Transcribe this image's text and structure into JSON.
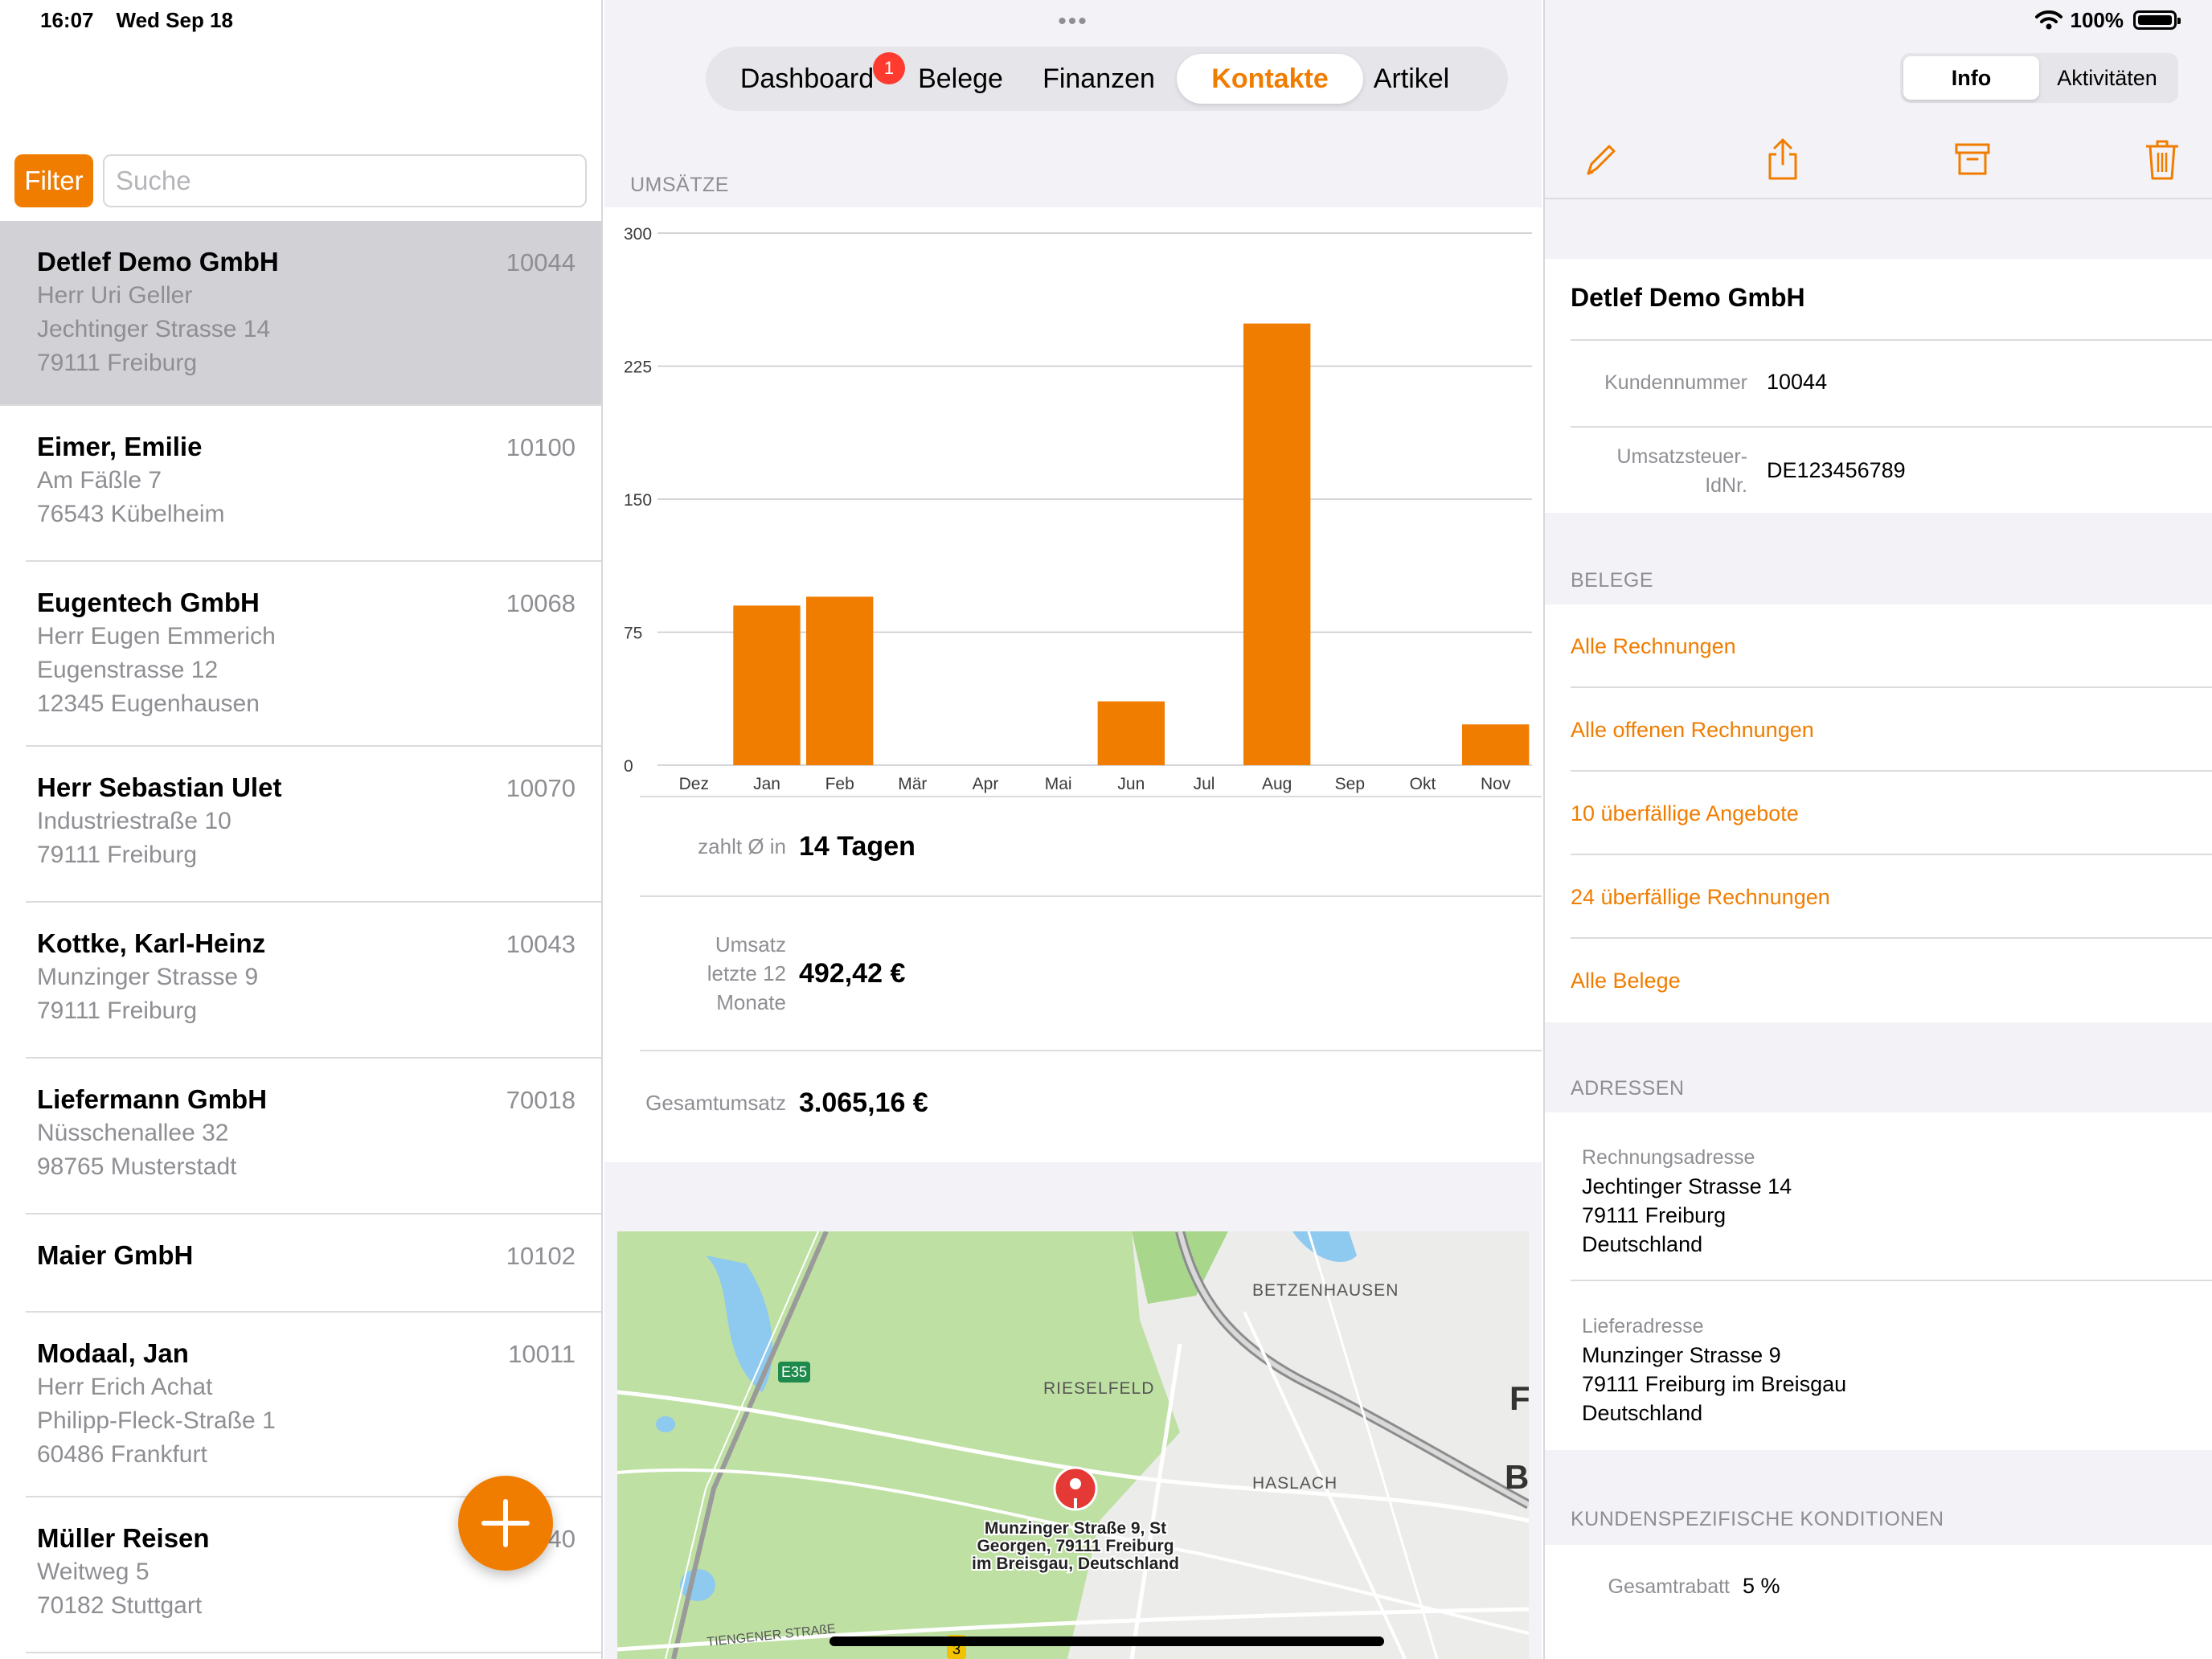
{
  "status": {
    "time": "16:07",
    "date": "Wed Sep 18",
    "battery": "100%"
  },
  "left": {
    "filter_label": "Filter",
    "search_placeholder": "Suche",
    "contacts": [
      {
        "name": "Detlef Demo GmbH",
        "number": "10044",
        "lines": [
          "Herr Uri Geller",
          "Jechtinger Strasse 14",
          "79111  Freiburg"
        ],
        "selected": true
      },
      {
        "name": "Eimer, Emilie",
        "number": "10100",
        "lines": [
          "Am Fäßle 7",
          "76543  Kübelheim"
        ]
      },
      {
        "name": "Eugentech GmbH",
        "number": "10068",
        "lines": [
          "Herr Eugen Emmerich",
          "Eugenstrasse 12",
          "12345  Eugenhausen"
        ]
      },
      {
        "name": "Herr Sebastian Ulet",
        "number": "10070",
        "lines": [
          "Industriestraße 10",
          "79111  Freiburg"
        ]
      },
      {
        "name": "Kottke, Karl-Heinz",
        "number": "10043",
        "lines": [
          "Munzinger Strasse 9",
          "79111  Freiburg"
        ]
      },
      {
        "name": "Liefermann GmbH",
        "number": "70018",
        "lines": [
          "Nüsschenallee 32",
          "98765  Musterstadt"
        ]
      },
      {
        "name": "Maier GmbH",
        "number": "10102",
        "lines": []
      },
      {
        "name": "Modaal, Jan",
        "number": "10011",
        "lines": [
          "Herr Erich Achat",
          "Philipp-Fleck-Straße 1",
          "60486  Frankfurt"
        ]
      },
      {
        "name": "Müller Reisen",
        "number": "40",
        "lines": [
          "Weitweg 5",
          "70182  Stuttgart"
        ]
      }
    ]
  },
  "middle": {
    "tabs": [
      {
        "label": "Dashboard",
        "badge": "1"
      },
      {
        "label": "Belege"
      },
      {
        "label": "Finanzen"
      },
      {
        "label": "Kontakte",
        "active": true
      },
      {
        "label": "Artikel"
      }
    ],
    "section_title": "UMSÄTZE",
    "kpis": {
      "pay_label": "zahlt Ø in",
      "pay_value": "14 Tagen",
      "revenue_label_lines": [
        "Umsatz",
        "letzte 12",
        "Monate"
      ],
      "revenue_value": "492,42 €",
      "total_label": "Gesamtumsatz",
      "total_value": "3.065,16 €"
    },
    "map": {
      "pin_label_lines": [
        "Munzinger Straße 9, St",
        "Georgen, 79111 Freiburg",
        "im Breisgau, Deutschland"
      ],
      "place_labels": [
        "BETZENHAUSEN",
        "RIESELFELD",
        "HASLACH",
        "TIENGENER STRAßE",
        "E35",
        "F",
        "B",
        "3"
      ]
    }
  },
  "chart_data": {
    "type": "bar",
    "categories": [
      "Dez",
      "Jan",
      "Feb",
      "Mär",
      "Apr",
      "Mai",
      "Jun",
      "Jul",
      "Aug",
      "Sep",
      "Okt",
      "Nov"
    ],
    "values": [
      0,
      90,
      95,
      0,
      0,
      0,
      36,
      0,
      249,
      0,
      0,
      23
    ],
    "yticks": [
      0,
      75,
      150,
      225,
      300
    ],
    "ylim": [
      0,
      300
    ],
    "color": "#f07d00",
    "grid": true
  },
  "right": {
    "segments": [
      "Info",
      "Aktivitäten"
    ],
    "contact_name": "Detlef Demo GmbH",
    "customer_no_label": "Kundennummer",
    "customer_no": "10044",
    "vat_label_lines": [
      "Umsatzsteuer-",
      "IdNr."
    ],
    "vat_value": "DE123456789",
    "belege_header": "BELEGE",
    "belege_links": [
      "Alle Rechnungen",
      "Alle offenen Rechnungen",
      "10 überfällige Angebote",
      "24 überfällige Rechnungen",
      "Alle Belege"
    ],
    "adressen_header": "ADRESSEN",
    "billing_label": "Rechnungsadresse",
    "billing_lines": [
      "Jechtinger Strasse 14",
      "79111 Freiburg",
      "Deutschland"
    ],
    "delivery_label": "Lieferadresse",
    "delivery_lines": [
      "Munzinger Strasse 9",
      "79111 Freiburg im Breisgau",
      "Deutschland"
    ],
    "conditions_header": "KUNDENSPEZIFISCHE KONDITIONEN",
    "discount_label": "Gesamtrabatt",
    "discount_value": "5 %"
  },
  "colors": {
    "accent": "#f07d00",
    "badge": "#ff3b30",
    "selected_row": "#d1d1d6"
  }
}
